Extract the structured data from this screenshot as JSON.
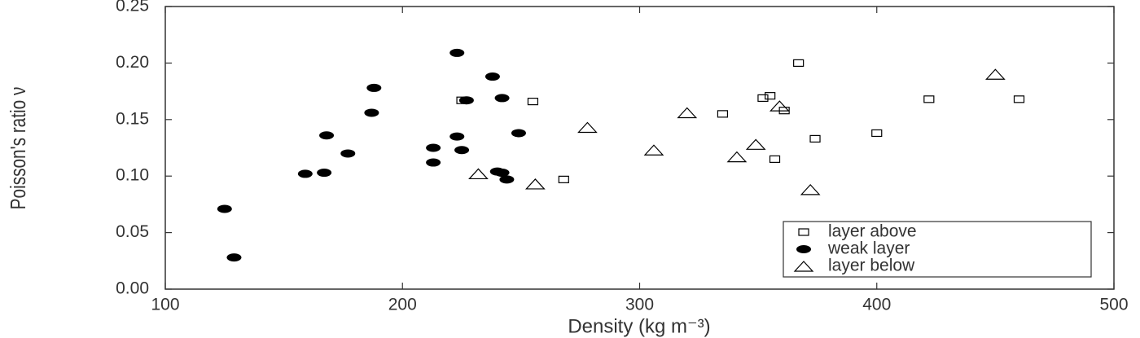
{
  "chart_data": {
    "type": "scatter",
    "xlabel": "Density (kg m⁻³)",
    "ylabel": "Poisson's ratio ν",
    "xlim": [
      100,
      500
    ],
    "xticks": [
      100,
      200,
      300,
      400,
      500
    ],
    "ylim": [
      0,
      0.25
    ],
    "yticks": [
      {
        "value": 0,
        "label": "0.00"
      },
      {
        "value": 0.05,
        "label": "0.05"
      },
      {
        "value": 0.1,
        "label": "0.10"
      },
      {
        "value": 0.15,
        "label": "0.15"
      },
      {
        "value": 0.2,
        "label": "0.20"
      },
      {
        "value": 0.25,
        "label": "0.25"
      }
    ],
    "legend": "lower right",
    "series": [
      {
        "name": "layer above",
        "color": "#000000",
        "marker": "square",
        "x": [
          225,
          255,
          268,
          335,
          352,
          355,
          357,
          361,
          374,
          367,
          400,
          422,
          460
        ],
        "values": [
          0.167,
          0.166,
          0.097,
          0.155,
          0.169,
          0.171,
          0.115,
          0.158,
          0.133,
          0.2,
          0.138,
          0.168,
          0.168
        ]
      },
      {
        "name": "weak layer",
        "color": "#000000",
        "marker": "circle",
        "x": [
          125,
          129,
          159,
          167,
          168,
          177,
          187,
          188,
          213,
          213,
          223,
          223,
          225,
          227,
          238,
          240,
          242,
          242,
          244,
          249
        ],
        "values": [
          0.071,
          0.028,
          0.102,
          0.103,
          0.136,
          0.12,
          0.156,
          0.178,
          0.125,
          0.112,
          0.209,
          0.135,
          0.123,
          0.167,
          0.188,
          0.104,
          0.169,
          0.103,
          0.097,
          0.138
        ]
      },
      {
        "name": "layer below",
        "color": "#000000",
        "marker": "triangle",
        "x": [
          232,
          256,
          278,
          306,
          320,
          341,
          349,
          359,
          372,
          450
        ],
        "values": [
          0.102,
          0.093,
          0.143,
          0.123,
          0.156,
          0.117,
          0.128,
          0.162,
          0.088,
          0.19
        ]
      }
    ]
  }
}
